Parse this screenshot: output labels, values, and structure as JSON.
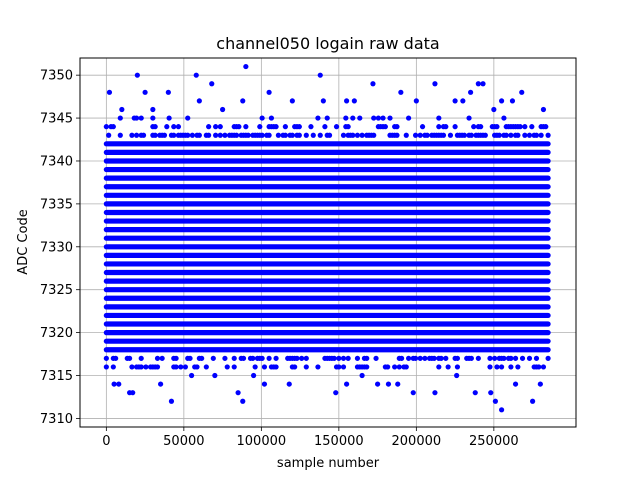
{
  "chart_data": {
    "type": "scatter",
    "title": "channel050 logain raw data",
    "xlabel": "sample number",
    "ylabel": "ADC Code",
    "xlim": [
      -17000,
      303000
    ],
    "ylim": [
      7309,
      7352
    ],
    "x_ticks": [
      0,
      50000,
      100000,
      150000,
      200000,
      250000
    ],
    "y_ticks": [
      7310,
      7315,
      7320,
      7325,
      7330,
      7335,
      7340,
      7345,
      7350
    ],
    "grid": true,
    "marker_color": "#0000ff",
    "sample_range": [
      0,
      285000
    ],
    "dense_band": [
      7318,
      7342
    ],
    "series": [
      {
        "points": [
          [
            2000,
            7348
          ],
          [
            20000,
            7350
          ],
          [
            58000,
            7350
          ],
          [
            90000,
            7351
          ],
          [
            138000,
            7350
          ],
          [
            25000,
            7348
          ],
          [
            40000,
            7348
          ],
          [
            68000,
            7349
          ],
          [
            105000,
            7348
          ],
          [
            172000,
            7349
          ],
          [
            212000,
            7349
          ],
          [
            240000,
            7349
          ],
          [
            243000,
            7349
          ],
          [
            268000,
            7348
          ],
          [
            60000,
            7347
          ],
          [
            120000,
            7347
          ],
          [
            140000,
            7347
          ],
          [
            155000,
            7347
          ],
          [
            190000,
            7348
          ],
          [
            225000,
            7347
          ],
          [
            235000,
            7348
          ],
          [
            255000,
            7347
          ],
          [
            262000,
            7347
          ],
          [
            10000,
            7346
          ],
          [
            30000,
            7346
          ],
          [
            75000,
            7346
          ],
          [
            88000,
            7347
          ],
          [
            160000,
            7347
          ],
          [
            200000,
            7347
          ],
          [
            230000,
            7347
          ],
          [
            250000,
            7346
          ],
          [
            282000,
            7346
          ],
          [
            5000,
            7314
          ],
          [
            8000,
            7314
          ],
          [
            15000,
            7313
          ],
          [
            17000,
            7313
          ],
          [
            35000,
            7314
          ],
          [
            42000,
            7312
          ],
          [
            55000,
            7315
          ],
          [
            70000,
            7315
          ],
          [
            85000,
            7313
          ],
          [
            88000,
            7312
          ],
          [
            95000,
            7315
          ],
          [
            102000,
            7314
          ],
          [
            118000,
            7314
          ],
          [
            148000,
            7313
          ],
          [
            155000,
            7314
          ],
          [
            165000,
            7315
          ],
          [
            175000,
            7314
          ],
          [
            182000,
            7314
          ],
          [
            188000,
            7314
          ],
          [
            198000,
            7313
          ],
          [
            212000,
            7313
          ],
          [
            226000,
            7315
          ],
          [
            238000,
            7313
          ],
          [
            248000,
            7313
          ],
          [
            251000,
            7312
          ],
          [
            255000,
            7311
          ],
          [
            264000,
            7314
          ],
          [
            275000,
            7312
          ],
          [
            280000,
            7314
          ]
        ]
      }
    ]
  }
}
